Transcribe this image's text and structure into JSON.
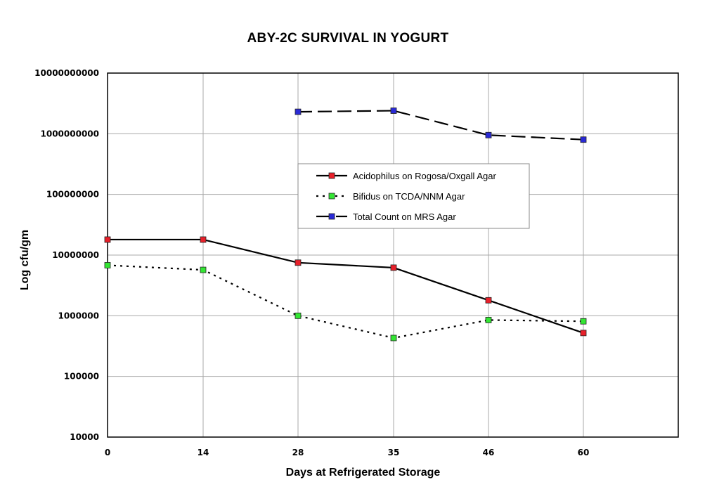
{
  "chart_data": {
    "type": "line",
    "title": "ABY-2C SURVIVAL IN YOGURT",
    "xlabel": "Days at Refrigerated Storage",
    "ylabel": "Log cfu/gm",
    "y_scale": "log",
    "ylim": [
      10000,
      10000000000
    ],
    "y_ticks": [
      "10000",
      "100000",
      "1000000",
      "10000000",
      "100000000",
      "1000000000",
      "10000000000"
    ],
    "categories": [
      "0",
      "14",
      "28",
      "35",
      "46",
      "60"
    ],
    "grid": true,
    "legend_position": "center-right",
    "series": [
      {
        "name": "Acidophilus on Rogosa/Oxgall Agar",
        "color": "#e8202a",
        "line_style": "solid",
        "values": [
          18000000,
          18000000,
          7500000,
          6200000,
          1800000,
          520000
        ]
      },
      {
        "name": "Bifidus on TCDA/NNM Agar",
        "color": "#33e633",
        "line_style": "dotted",
        "values": [
          6800000,
          5700000,
          1000000,
          430000,
          850000,
          810000
        ]
      },
      {
        "name": "Total Count on MRS Agar",
        "color": "#2a2ad6",
        "line_style": "dashed",
        "values": [
          null,
          null,
          2300000000,
          2400000000,
          950000000,
          800000000
        ]
      }
    ]
  }
}
